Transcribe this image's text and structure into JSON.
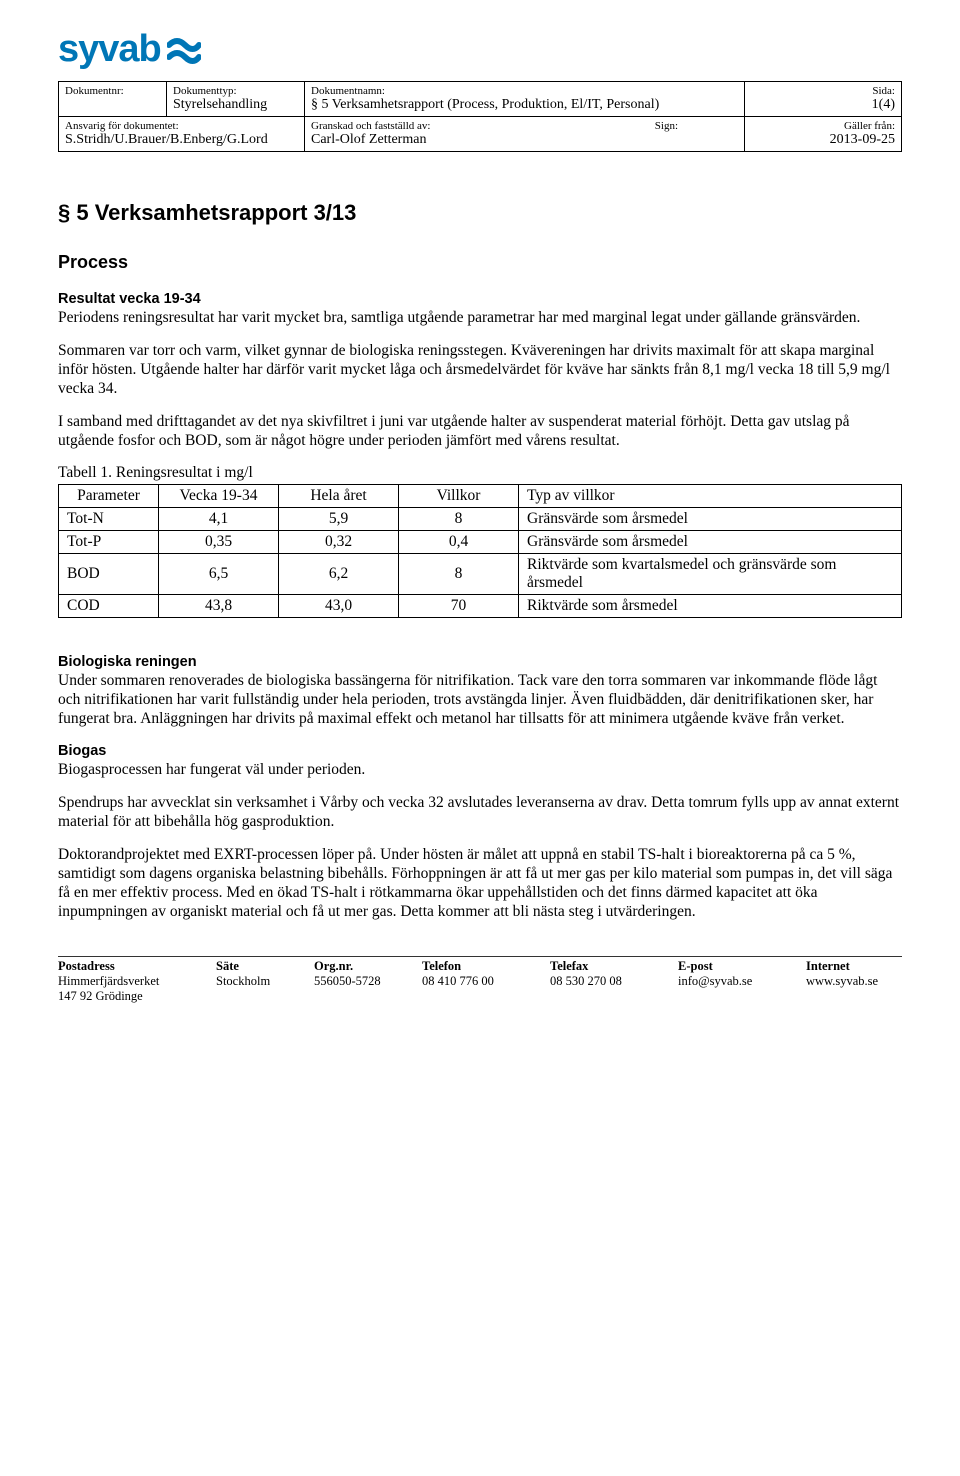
{
  "logo": {
    "text": "syvab",
    "color": "#0076b6"
  },
  "header": {
    "labels": {
      "docnr": "Dokumentnr:",
      "doctype": "Dokumenttyp:",
      "docname": "Dokumentnamn:",
      "page": "Sida:",
      "resp": "Ansvarig för dokumentet:",
      "reviewed": "Granskad och fastställd av:",
      "sign": "Sign:",
      "valid": "Gäller från:"
    },
    "values": {
      "doctype": "Styrelsehandling",
      "docname": "§ 5 Verksamhetsrapport (Process, Produktion, El/IT, Personal)",
      "page": "1(4)",
      "resp": "S.Stridh/U.Brauer/B.Enberg/G.Lord",
      "reviewed": "Carl-Olof Zetterman",
      "valid": "2013-09-25"
    }
  },
  "title": "§ 5 Verksamhetsrapport 3/13",
  "h_process": "Process",
  "h_result": "Resultat vecka 19-34",
  "p1": "Periodens reningsresultat har varit mycket bra, samtliga utgående parametrar har med marginal legat under gällande gränsvärden.",
  "p2": "Sommaren var torr och varm, vilket gynnar de biologiska reningsstegen. Kvävereningen har drivits maximalt för att skapa marginal inför hösten. Utgående halter har därför varit mycket låga och årsmedelvärdet för kväve har sänkts från 8,1 mg/l vecka 18 till 5,9 mg/l vecka 34.",
  "p3": "I samband med drifttagandet av det nya skivfiltret i juni var utgående halter av suspenderat material förhöjt. Detta gav utslag på utgående fosfor och BOD, som är något högre under perioden jämfört med vårens resultat.",
  "table1": {
    "caption": "Tabell 1. Reningsresultat i mg/l",
    "columns": [
      "Parameter",
      "Vecka 19-34",
      "Hela året",
      "Villkor",
      "Typ av villkor"
    ],
    "col_widths": [
      "100px",
      "120px",
      "120px",
      "120px",
      "auto"
    ],
    "rows": [
      [
        "Tot-N",
        "4,1",
        "5,9",
        "8",
        "Gränsvärde som årsmedel"
      ],
      [
        "Tot-P",
        "0,35",
        "0,32",
        "0,4",
        "Gränsvärde som årsmedel"
      ],
      [
        "BOD",
        "6,5",
        "6,2",
        "8",
        "Riktvärde som kvartalsmedel och gränsvärde som årsmedel"
      ],
      [
        "COD",
        "43,8",
        "43,0",
        "70",
        "Riktvärde som årsmedel"
      ]
    ]
  },
  "h_bio": "Biologiska reningen",
  "p_bio": "Under sommaren renoverades de biologiska bassängerna för nitrifikation. Tack vare den torra sommaren var inkommande flöde lågt och nitrifikationen har varit fullständig under hela perioden, trots avstängda linjer. Även fluidbädden, där denitrifikationen sker, har fungerat bra. Anläggningen har drivits på maximal effekt och metanol har tillsatts för att minimera utgående kväve från verket.",
  "h_biogas": "Biogas",
  "p_biogas1": "Biogasprocessen har fungerat väl under perioden.",
  "p_biogas2": "Spendrups har avvecklat sin verksamhet i Vårby och vecka 32 avslutades leveranserna av drav. Detta tomrum fylls upp av annat externt material för att bibehålla hög gasproduktion.",
  "p_biogas3": "Doktorandprojektet med EXRT-processen löper på. Under hösten är målet att uppnå en stabil TS-halt i bioreaktorerna på ca 5 %, samtidigt som dagens organiska belastning bibehålls. Förhoppningen är att få ut mer gas per kilo material som pumpas in, det vill säga få en mer effektiv process. Med en ökad TS-halt i rötkammarna ökar uppehållstiden och det finns därmed kapacitet att öka inpumpningen av organiskt material och få ut mer gas. Detta kommer att bli nästa steg i utvärderingen.",
  "footer": {
    "labels": [
      "Postadress",
      "Säte",
      "Org.nr.",
      "Telefon",
      "Telefax",
      "E-post",
      "Internet"
    ],
    "row1": [
      "Himmerfjärdsverket",
      "Stockholm",
      "556050-5728",
      "08 410 776 00",
      "08 530 270 08",
      "info@syvab.se",
      "www.syvab.se"
    ],
    "row2": [
      "147 92 Grödinge",
      "",
      "",
      "",
      "",
      "",
      ""
    ]
  }
}
